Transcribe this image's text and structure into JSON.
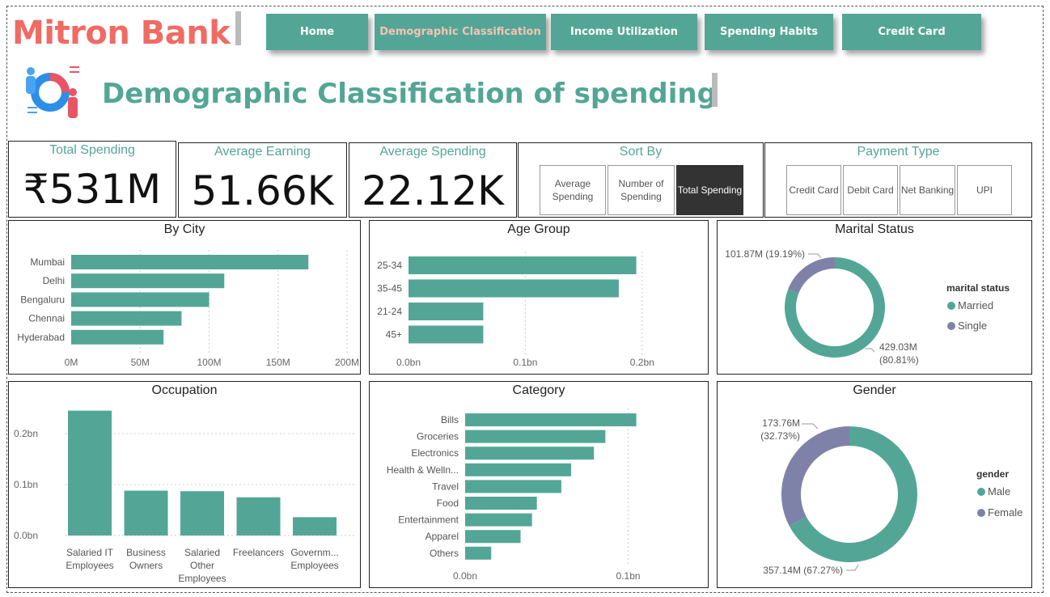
{
  "brand": "Mitron Bank",
  "nav": [
    {
      "label": "Home",
      "active": false
    },
    {
      "label": "Demographic Classification",
      "active": true
    },
    {
      "label": "Income Utilization",
      "active": false
    },
    {
      "label": "Spending Habits",
      "active": false
    },
    {
      "label": "Credit Card",
      "active": false
    }
  ],
  "page_title": "Demographic Classification of spending",
  "kpis": {
    "total_spending": {
      "label": "Total Spending",
      "value": "₹531M"
    },
    "average_earning": {
      "label": "Average Earning",
      "value": "51.66K"
    },
    "average_spending": {
      "label": "Average Spending",
      "value": "22.12K"
    }
  },
  "sort_by": {
    "label": "Sort By",
    "options": [
      "Average Spending",
      "Number of Spending",
      "Total Spending"
    ],
    "selected": "Total Spending"
  },
  "payment_type": {
    "label": "Payment Type",
    "options": [
      "Credit Card",
      "Debit Card",
      "Net Banking",
      "UPI"
    ]
  },
  "colors": {
    "teal": "#53a695",
    "slate": "#7f82a8",
    "brand_red": "#f06b63"
  },
  "chart_data": [
    {
      "id": "by_city",
      "type": "bar",
      "orientation": "horizontal",
      "title": "By City",
      "categories": [
        "Mumbai",
        "Delhi",
        "Bengaluru",
        "Chennai",
        "Hyderabad"
      ],
      "values": [
        172,
        111,
        100,
        80,
        67
      ],
      "unit": "M",
      "xlim": [
        0,
        200
      ],
      "ticks": [
        "0M",
        "50M",
        "100M",
        "150M",
        "200M"
      ],
      "grid": true
    },
    {
      "id": "age_group",
      "type": "bar",
      "orientation": "horizontal",
      "title": "Age Group",
      "categories": [
        "25-34",
        "35-45",
        "21-24",
        "45+"
      ],
      "values": [
        0.195,
        0.18,
        0.064,
        0.064
      ],
      "unit": "bn",
      "xlim": [
        0,
        0.25
      ],
      "ticks": [
        "0.0bn",
        "0.1bn",
        "0.2bn"
      ],
      "grid": true
    },
    {
      "id": "marital_status",
      "type": "pie",
      "donut": true,
      "title": "Marital Status",
      "legend_title": "marital status",
      "labels": [
        "Married",
        "Single"
      ],
      "values": [
        429.03,
        101.87
      ],
      "data_labels": [
        "429.03M (80.81%)",
        "101.87M (19.19%)"
      ],
      "legend": "right"
    },
    {
      "id": "occupation",
      "type": "bar",
      "orientation": "vertical",
      "title": "Occupation",
      "categories": [
        "Salaried IT Employees",
        "Business Owners",
        "Salaried Other Employees",
        "Freelancers",
        "Governm... Employees"
      ],
      "values": [
        0.245,
        0.088,
        0.087,
        0.075,
        0.036
      ],
      "unit": "bn",
      "ylim": [
        0,
        0.25
      ],
      "ticks": [
        "0.0bn",
        "0.1bn",
        "0.2bn"
      ],
      "grid": true
    },
    {
      "id": "category",
      "type": "bar",
      "orientation": "horizontal",
      "title": "Category",
      "categories": [
        "Bills",
        "Groceries",
        "Electronics",
        "Health & Welln...",
        "Travel",
        "Food",
        "Entertainment",
        "Apparel",
        "Others"
      ],
      "values": [
        0.105,
        0.086,
        0.079,
        0.065,
        0.059,
        0.044,
        0.041,
        0.034,
        0.016
      ],
      "unit": "bn",
      "xlim": [
        0,
        0.13
      ],
      "ticks": [
        "0.0bn",
        "0.1bn"
      ],
      "grid": true
    },
    {
      "id": "gender",
      "type": "pie",
      "donut": true,
      "title": "Gender",
      "legend_title": "gender",
      "labels": [
        "Male",
        "Female"
      ],
      "values": [
        357.14,
        173.76
      ],
      "data_labels": [
        "357.14M (67.27%)",
        "173.76M (32.73%)"
      ],
      "legend": "right"
    }
  ]
}
